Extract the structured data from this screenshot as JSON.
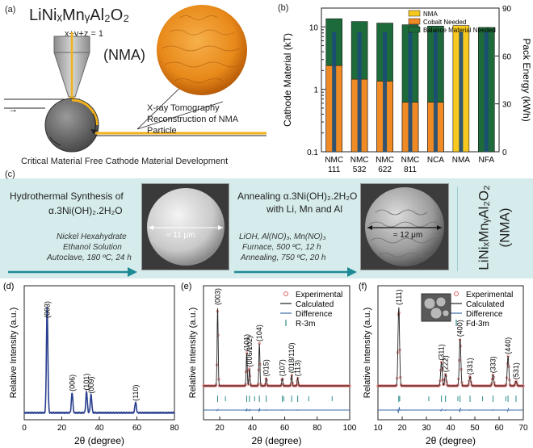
{
  "panel_a": {
    "label": "(a)",
    "formula": "LiNiₓMnᵧAl₂O₂",
    "constraint": "x+y+z = 1",
    "abbrev": "(NMA)",
    "tomo_line1": "X-ray Tomography",
    "tomo_line2": "Reconstruction of NMA",
    "tomo_line3": "Particle",
    "caption": "Critical Material Free Cathode Material Development"
  },
  "panel_c": {
    "label": "(c)",
    "step1_line1": "Hydrothermal Synthesis of",
    "step1_line2": "α.3Ni(OH)₂.2H₂O",
    "step1_i1": "Nickel Hexahydrate",
    "step1_i2": "Ethanol Solution",
    "step1_i3": "Autoclave, 180 ºC, 24 h",
    "sem1_scale": "≈ 11 μm",
    "step2_line1": "Annealing α.3Ni(OH)₂.2H₂O",
    "step2_line2": "with Li, Mn and Al",
    "step2_i1": "LiOH, Al(NO)₃, Mn(NO)₃",
    "step2_i2": "Furnace, 500 ºC, 12 h",
    "step2_i3": "Annealing, 750 ºC, 20 h",
    "sem2_scale": "≈ 12 μm",
    "product_line1": "LiNiₓMnᵧAl₂O₂",
    "product_line2": "(NMA)"
  },
  "colors": {
    "nma": "#f7c81e",
    "cobalt": "#f08a24",
    "balance": "#1d6a3a",
    "xrd": "#2a3f8f",
    "exp": "#e06060",
    "diff": "#3a6aa8",
    "tick": "#2a8a8a",
    "band": "#d6ecec",
    "arrow": "#1e8a96"
  },
  "chart_data": [
    {
      "id": "b",
      "type": "bar",
      "label": "(b)",
      "categories": [
        "NMC\n111",
        "NMC\n532",
        "NMC\n622",
        "NMC\n811",
        "NCA",
        "NMA",
        "NFA"
      ],
      "ylabel": "Cathode Material (kT)",
      "y2label": "Pack Energy (kWh)",
      "ylim_log": [
        0.1,
        20
      ],
      "y2lim": [
        0,
        90
      ],
      "yticks": [
        "0.1",
        "1",
        "10"
      ],
      "y2ticks": [
        "0",
        "30",
        "60",
        "90"
      ],
      "series": [
        {
          "name": "NMA",
          "values": [
            0,
            0,
            0,
            0,
            0,
            10.5,
            0
          ]
        },
        {
          "name": "Cobalt Needed",
          "values": [
            2.4,
            1.45,
            1.35,
            0.62,
            0.62,
            0,
            0
          ]
        },
        {
          "name": "Balance Material Needed",
          "values": [
            13.5,
            12.2,
            11.5,
            10.8,
            10.3,
            10.5,
            9.8
          ]
        }
      ],
      "pack_energy": [
        75,
        75,
        75,
        75,
        75,
        75,
        75
      ],
      "legend": "top-right"
    },
    {
      "id": "d",
      "type": "line",
      "label": "(d)",
      "xlabel": "2θ (degree)",
      "ylabel": "Relative Intensity (a.u.)",
      "xlim": [
        0,
        80
      ],
      "xticks": [
        "0",
        "20",
        "40",
        "60",
        "80"
      ],
      "peaks": [
        {
          "x": 12.2,
          "h": 1.0,
          "label": "(003)"
        },
        {
          "x": 25.5,
          "h": 0.19,
          "label": "(006)"
        },
        {
          "x": 33.2,
          "h": 0.2,
          "label": "(101)"
        },
        {
          "x": 35.6,
          "h": 0.17,
          "label": "(009)"
        },
        {
          "x": 59.3,
          "h": 0.1,
          "label": "(110)"
        }
      ]
    },
    {
      "id": "e",
      "type": "line",
      "label": "(e)",
      "xlabel": "2θ (degree)",
      "ylabel": "Relative Intensity (a.u.)",
      "xlim": [
        10,
        100
      ],
      "xticks": [
        "20",
        "40",
        "60",
        "80",
        "100"
      ],
      "legend": [
        "Experimental",
        "Calculated",
        "Difference",
        "R-3m"
      ],
      "peaks": [
        {
          "x": 18.7,
          "h": 1.0,
          "label": "(003)"
        },
        {
          "x": 36.6,
          "h": 0.42,
          "label": "(101)"
        },
        {
          "x": 38.3,
          "h": 0.22,
          "label": "(006/102)"
        },
        {
          "x": 44.4,
          "h": 0.54,
          "label": "(104)"
        },
        {
          "x": 48.6,
          "h": 0.1,
          "label": "(015)"
        },
        {
          "x": 58.5,
          "h": 0.1,
          "label": "(107)"
        },
        {
          "x": 64.3,
          "h": 0.14,
          "label": "(018/110)"
        },
        {
          "x": 68.0,
          "h": 0.1,
          "label": "(113)"
        }
      ]
    },
    {
      "id": "f",
      "type": "line",
      "label": "(f)",
      "xlabel": "2θ (degree)",
      "ylabel": "Relative Intensity (a.u.)",
      "xlim": [
        10,
        70
      ],
      "xticks": [
        "10",
        "20",
        "30",
        "40",
        "50",
        "60",
        "70"
      ],
      "legend": [
        "Experimental",
        "Calculated",
        "Difference",
        "Fd-3m"
      ],
      "peaks": [
        {
          "x": 18.6,
          "h": 1.0,
          "label": "(111)"
        },
        {
          "x": 36.2,
          "h": 0.3,
          "label": "(311)"
        },
        {
          "x": 37.9,
          "h": 0.15,
          "label": "(222)"
        },
        {
          "x": 43.9,
          "h": 0.6,
          "label": "(400)"
        },
        {
          "x": 48.0,
          "h": 0.12,
          "label": "(331)"
        },
        {
          "x": 57.5,
          "h": 0.14,
          "label": "(333)"
        },
        {
          "x": 63.7,
          "h": 0.38,
          "label": "(440)"
        },
        {
          "x": 67.0,
          "h": 0.06,
          "label": "(531)"
        }
      ]
    }
  ]
}
